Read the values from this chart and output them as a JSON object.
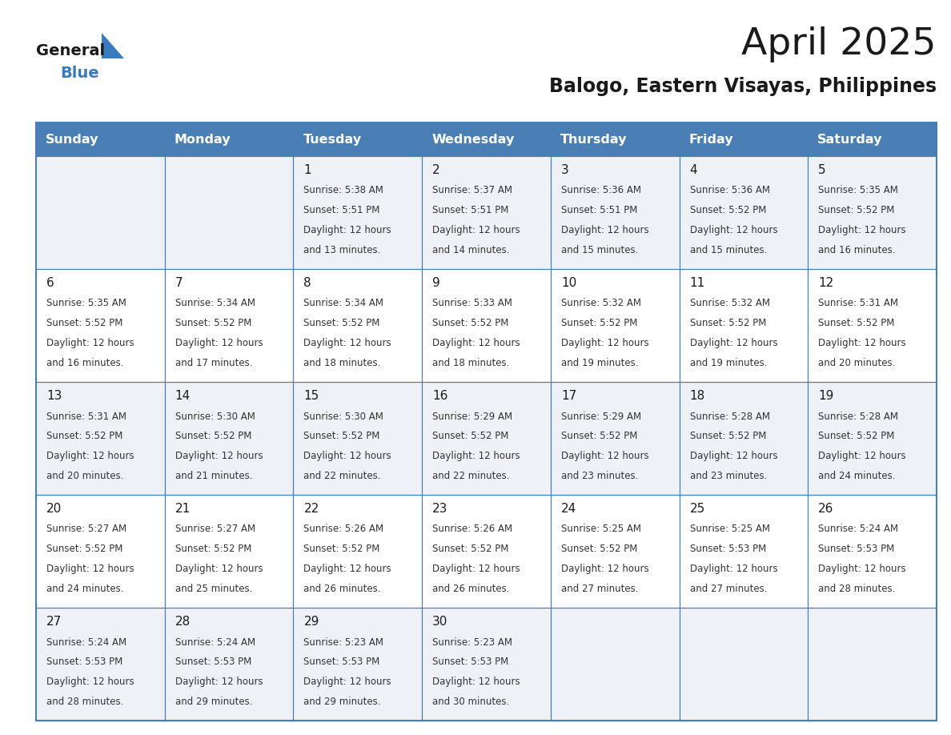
{
  "title": "April 2025",
  "subtitle": "Balogo, Eastern Visayas, Philippines",
  "days_of_week": [
    "Sunday",
    "Monday",
    "Tuesday",
    "Wednesday",
    "Thursday",
    "Friday",
    "Saturday"
  ],
  "header_bg": "#4a7fb5",
  "header_text": "#ffffff",
  "row_bg_odd": "#eef2f7",
  "row_bg_even": "#ffffff",
  "border_color": "#4a7fb5",
  "text_color": "#333333",
  "day_num_color": "#1a1a1a",
  "logo_general_color": "#1a1a1a",
  "logo_blue_color": "#3a7abf",
  "title_color": "#1a1a1a",
  "subtitle_color": "#1a1a1a",
  "calendar_data": [
    [
      {
        "day": "",
        "sunrise": "",
        "sunset": "",
        "daylight": ""
      },
      {
        "day": "",
        "sunrise": "",
        "sunset": "",
        "daylight": ""
      },
      {
        "day": "1",
        "sunrise": "5:38 AM",
        "sunset": "5:51 PM",
        "daylight": "12 hours and 13 minutes."
      },
      {
        "day": "2",
        "sunrise": "5:37 AM",
        "sunset": "5:51 PM",
        "daylight": "12 hours and 14 minutes."
      },
      {
        "day": "3",
        "sunrise": "5:36 AM",
        "sunset": "5:51 PM",
        "daylight": "12 hours and 15 minutes."
      },
      {
        "day": "4",
        "sunrise": "5:36 AM",
        "sunset": "5:52 PM",
        "daylight": "12 hours and 15 minutes."
      },
      {
        "day": "5",
        "sunrise": "5:35 AM",
        "sunset": "5:52 PM",
        "daylight": "12 hours and 16 minutes."
      }
    ],
    [
      {
        "day": "6",
        "sunrise": "5:35 AM",
        "sunset": "5:52 PM",
        "daylight": "12 hours and 16 minutes."
      },
      {
        "day": "7",
        "sunrise": "5:34 AM",
        "sunset": "5:52 PM",
        "daylight": "12 hours and 17 minutes."
      },
      {
        "day": "8",
        "sunrise": "5:34 AM",
        "sunset": "5:52 PM",
        "daylight": "12 hours and 18 minutes."
      },
      {
        "day": "9",
        "sunrise": "5:33 AM",
        "sunset": "5:52 PM",
        "daylight": "12 hours and 18 minutes."
      },
      {
        "day": "10",
        "sunrise": "5:32 AM",
        "sunset": "5:52 PM",
        "daylight": "12 hours and 19 minutes."
      },
      {
        "day": "11",
        "sunrise": "5:32 AM",
        "sunset": "5:52 PM",
        "daylight": "12 hours and 19 minutes."
      },
      {
        "day": "12",
        "sunrise": "5:31 AM",
        "sunset": "5:52 PM",
        "daylight": "12 hours and 20 minutes."
      }
    ],
    [
      {
        "day": "13",
        "sunrise": "5:31 AM",
        "sunset": "5:52 PM",
        "daylight": "12 hours and 20 minutes."
      },
      {
        "day": "14",
        "sunrise": "5:30 AM",
        "sunset": "5:52 PM",
        "daylight": "12 hours and 21 minutes."
      },
      {
        "day": "15",
        "sunrise": "5:30 AM",
        "sunset": "5:52 PM",
        "daylight": "12 hours and 22 minutes."
      },
      {
        "day": "16",
        "sunrise": "5:29 AM",
        "sunset": "5:52 PM",
        "daylight": "12 hours and 22 minutes."
      },
      {
        "day": "17",
        "sunrise": "5:29 AM",
        "sunset": "5:52 PM",
        "daylight": "12 hours and 23 minutes."
      },
      {
        "day": "18",
        "sunrise": "5:28 AM",
        "sunset": "5:52 PM",
        "daylight": "12 hours and 23 minutes."
      },
      {
        "day": "19",
        "sunrise": "5:28 AM",
        "sunset": "5:52 PM",
        "daylight": "12 hours and 24 minutes."
      }
    ],
    [
      {
        "day": "20",
        "sunrise": "5:27 AM",
        "sunset": "5:52 PM",
        "daylight": "12 hours and 24 minutes."
      },
      {
        "day": "21",
        "sunrise": "5:27 AM",
        "sunset": "5:52 PM",
        "daylight": "12 hours and 25 minutes."
      },
      {
        "day": "22",
        "sunrise": "5:26 AM",
        "sunset": "5:52 PM",
        "daylight": "12 hours and 26 minutes."
      },
      {
        "day": "23",
        "sunrise": "5:26 AM",
        "sunset": "5:52 PM",
        "daylight": "12 hours and 26 minutes."
      },
      {
        "day": "24",
        "sunrise": "5:25 AM",
        "sunset": "5:52 PM",
        "daylight": "12 hours and 27 minutes."
      },
      {
        "day": "25",
        "sunrise": "5:25 AM",
        "sunset": "5:53 PM",
        "daylight": "12 hours and 27 minutes."
      },
      {
        "day": "26",
        "sunrise": "5:24 AM",
        "sunset": "5:53 PM",
        "daylight": "12 hours and 28 minutes."
      }
    ],
    [
      {
        "day": "27",
        "sunrise": "5:24 AM",
        "sunset": "5:53 PM",
        "daylight": "12 hours and 28 minutes."
      },
      {
        "day": "28",
        "sunrise": "5:24 AM",
        "sunset": "5:53 PM",
        "daylight": "12 hours and 29 minutes."
      },
      {
        "day": "29",
        "sunrise": "5:23 AM",
        "sunset": "5:53 PM",
        "daylight": "12 hours and 29 minutes."
      },
      {
        "day": "30",
        "sunrise": "5:23 AM",
        "sunset": "5:53 PM",
        "daylight": "12 hours and 30 minutes."
      },
      {
        "day": "",
        "sunrise": "",
        "sunset": "",
        "daylight": ""
      },
      {
        "day": "",
        "sunrise": "",
        "sunset": "",
        "daylight": ""
      },
      {
        "day": "",
        "sunrise": "",
        "sunset": "",
        "daylight": ""
      }
    ]
  ]
}
